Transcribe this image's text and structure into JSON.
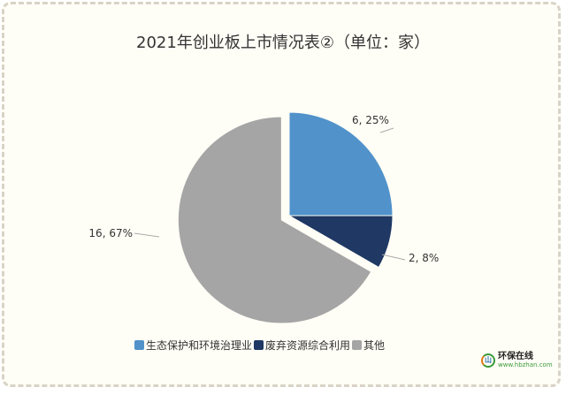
{
  "chart_data": {
    "type": "pie",
    "title": "2021年创业板上市情况表②（单位：家）",
    "slices": [
      {
        "name": "生态保护和环境治理业",
        "value": 6,
        "percent": "25%",
        "label": "6, 25%",
        "color": "#5192ca",
        "exploded": false
      },
      {
        "name": "废弃资源综合利用",
        "value": 2,
        "percent": "8%",
        "label": "2, 8%",
        "color": "#1f3864",
        "exploded": false
      },
      {
        "name": "其他",
        "value": 16,
        "percent": "67%",
        "label": "16, 67%",
        "color": "#a5a5a5",
        "exploded": true
      }
    ],
    "legend_placement": "bottom"
  },
  "watermark": {
    "name": "环保在线",
    "url": "www.hbzhan.com",
    "icon": "hb-logo-icon"
  }
}
